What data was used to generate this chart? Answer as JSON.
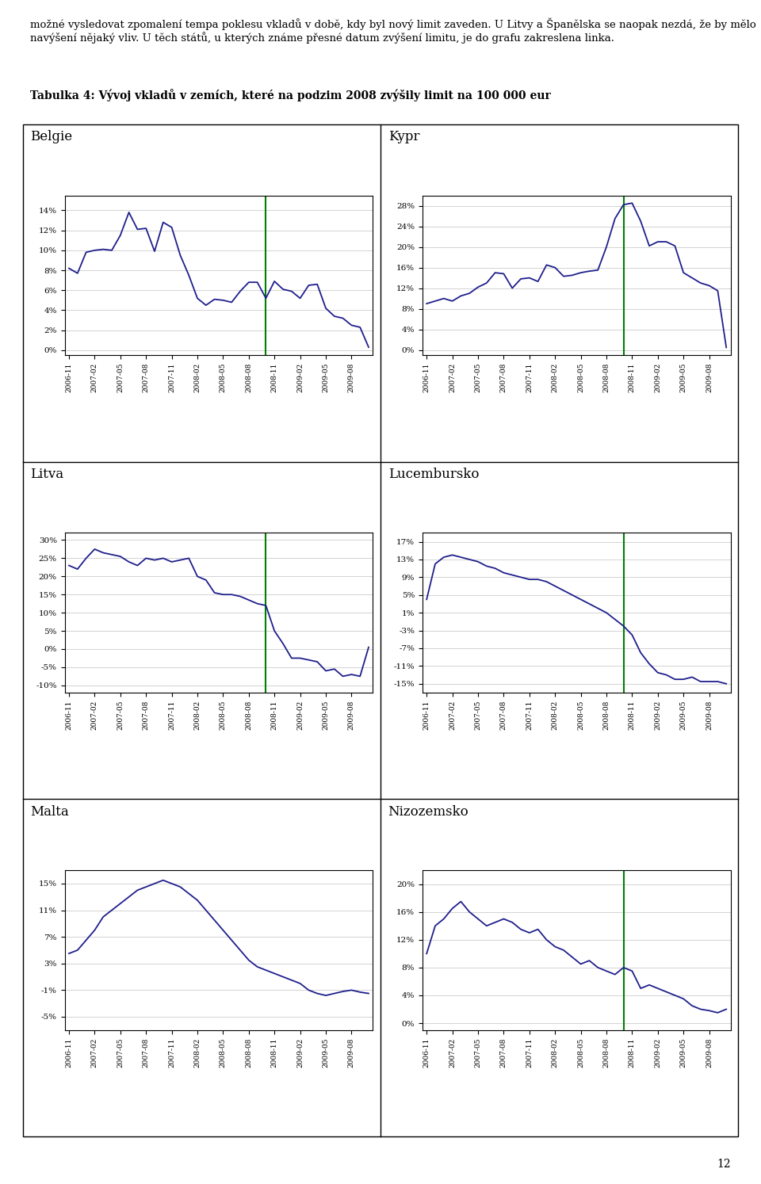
{
  "title": "Tabulka 4: Vývoj vkladů v zemích, které na podzim 2008 zvýšily limit na 100 000 eur",
  "para1": "možné vysledovat zpomalení tempa poklesu vkladů v době, kdy byl nový limit zaveden. U Litvy a Španělska se naopak nezdá, že by mělo navýšení nějaký vliv. U těch států, u kterých známe přesné datum zvýšení limitu, je do grafu zakreslena linka.",
  "page_num": "12",
  "line_color": "#1F1F8C",
  "vline_color": "#008000",
  "background_color": "#ffffff",
  "grid_color": "#cccccc",
  "plots": [
    {
      "title": "Belgie",
      "vline_x": 23,
      "yticks": [
        0,
        2,
        4,
        6,
        8,
        10,
        12,
        14
      ],
      "ylim": [
        -0.5,
        15.5
      ],
      "data": [
        8.2,
        7.7,
        9.8,
        10.0,
        10.1,
        10.0,
        11.5,
        13.8,
        12.1,
        12.2,
        9.9,
        12.8,
        12.3,
        9.5,
        7.5,
        5.2,
        4.5,
        5.1,
        5.0,
        4.8,
        5.9,
        6.8,
        6.8,
        5.2,
        6.9,
        6.1,
        5.9,
        5.2,
        6.5,
        6.6,
        4.2,
        3.4,
        3.2,
        2.5,
        2.3,
        0.3
      ]
    },
    {
      "title": "Kypr",
      "vline_x": 23,
      "yticks": [
        0,
        4,
        8,
        12,
        16,
        20,
        24,
        28
      ],
      "ylim": [
        -1,
        30
      ],
      "data": [
        9.0,
        9.5,
        10.0,
        9.5,
        10.5,
        11.0,
        12.2,
        13.0,
        15.0,
        14.8,
        12.0,
        13.8,
        14.0,
        13.3,
        16.5,
        16.0,
        14.3,
        14.5,
        15.0,
        15.3,
        15.5,
        20.0,
        25.5,
        28.2,
        28.5,
        25.0,
        20.2,
        21.0,
        21.0,
        20.2,
        15.0,
        14.0,
        13.0,
        12.5,
        11.5,
        0.5
      ]
    },
    {
      "title": "Litva",
      "vline_x": 23,
      "yticks": [
        -10,
        -5,
        0,
        5,
        10,
        15,
        20,
        25,
        30
      ],
      "ylim": [
        -12,
        32
      ],
      "data": [
        23.0,
        22.0,
        25.0,
        27.5,
        26.5,
        26.0,
        25.5,
        24.0,
        23.0,
        25.0,
        24.5,
        25.0,
        24.0,
        24.5,
        25.0,
        20.0,
        19.0,
        15.5,
        15.0,
        15.0,
        14.5,
        13.5,
        12.5,
        12.0,
        5.0,
        1.5,
        -2.5,
        -2.5,
        -3.0,
        -3.5,
        -6.0,
        -5.5,
        -7.5,
        -7.0,
        -7.5,
        0.5
      ]
    },
    {
      "title": "Lucembursko",
      "vline_x": 23,
      "yticks": [
        -15,
        -11,
        -7,
        -3,
        1,
        5,
        9,
        13,
        17
      ],
      "ylim": [
        -17,
        19
      ],
      "data": [
        4.0,
        12.0,
        13.5,
        14.0,
        13.5,
        13.0,
        12.5,
        11.5,
        11.0,
        10.0,
        9.5,
        9.0,
        8.5,
        8.5,
        8.0,
        7.0,
        6.0,
        5.0,
        4.0,
        3.0,
        2.0,
        1.0,
        -0.5,
        -2.0,
        -4.0,
        -8.0,
        -10.5,
        -12.5,
        -13.0,
        -14.0,
        -14.0,
        -13.5,
        -14.5,
        -14.5,
        -14.5,
        -15.0
      ]
    },
    {
      "title": "Malta",
      "vline_x": null,
      "yticks": [
        -5,
        -1,
        3,
        7,
        11,
        15
      ],
      "ylim": [
        -7,
        17
      ],
      "data": [
        4.5,
        5.0,
        6.5,
        8.0,
        10.0,
        11.0,
        12.0,
        13.0,
        14.0,
        14.5,
        15.0,
        15.5,
        15.0,
        14.5,
        13.5,
        12.5,
        11.0,
        9.5,
        8.0,
        6.5,
        5.0,
        3.5,
        2.5,
        2.0,
        1.5,
        1.0,
        0.5,
        0.0,
        -1.0,
        -1.5,
        -1.8,
        -1.5,
        -1.2,
        -1.0,
        -1.3,
        -1.5
      ]
    },
    {
      "title": "Nizozemsko",
      "vline_x": 23,
      "yticks": [
        0,
        4,
        8,
        12,
        16,
        20
      ],
      "ylim": [
        -1,
        22
      ],
      "data": [
        10.0,
        14.0,
        15.0,
        16.5,
        17.5,
        16.0,
        15.0,
        14.0,
        14.5,
        15.0,
        14.5,
        13.5,
        13.0,
        13.5,
        12.0,
        11.0,
        10.5,
        9.5,
        8.5,
        9.0,
        8.0,
        7.5,
        7.0,
        8.0,
        7.5,
        5.0,
        5.5,
        5.0,
        4.5,
        4.0,
        3.5,
        2.5,
        2.0,
        1.8,
        1.5,
        2.0
      ]
    }
  ],
  "x_labels": [
    "2006-11",
    "2007-02",
    "2007-05",
    "2007-08",
    "2007-11",
    "2008-02",
    "2008-05",
    "2008-08",
    "2008-11",
    "2009-02",
    "2009-05",
    "2009-08"
  ],
  "x_label_indices": [
    0,
    3,
    6,
    9,
    12,
    15,
    18,
    21,
    24,
    27,
    30,
    33
  ]
}
